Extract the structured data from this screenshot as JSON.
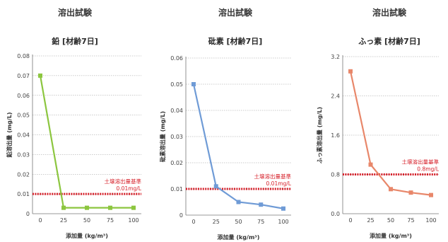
{
  "chart_data": [
    {
      "type": "line",
      "title": "溶出試験",
      "subtitle": "鉛 [材齢7日]",
      "xlabel": "添加量 (kg/m³)",
      "ylabel": "鉛溶出量 (mg/L)",
      "x": [
        0,
        25,
        50,
        75,
        100
      ],
      "xticks": [
        "0",
        "25",
        "50",
        "75",
        "100"
      ],
      "ylim": [
        0,
        0.08
      ],
      "yticks": [
        "0",
        "0.01",
        "0.02",
        "0.03",
        "0.04",
        "0.05",
        "0.06",
        "0.07",
        "0.08"
      ],
      "series": [
        {
          "values": [
            0.07,
            0.003,
            0.003,
            0.003,
            0.003
          ],
          "color": "#8cc63f"
        }
      ],
      "reference": {
        "value": 0.01,
        "label_line1": "土壌溶出量基準",
        "label_line2": "0.01mg/L",
        "color": "#d6202a"
      },
      "grid": "horizontal-dashed"
    },
    {
      "type": "line",
      "title": "溶出試験",
      "subtitle": "砒素 [材齢7日]",
      "xlabel": "添加量 (kg/m³)",
      "ylabel": "砒素溶出量 (mg/L)",
      "x": [
        0,
        25,
        50,
        75,
        100
      ],
      "xticks": [
        "0",
        "25",
        "50",
        "75",
        "100"
      ],
      "ylim": [
        0,
        0.06
      ],
      "yticks": [
        "0",
        "0.01",
        "0.02",
        "0.03",
        "0.04",
        "0.05",
        "0.06"
      ],
      "series": [
        {
          "values": [
            0.05,
            0.011,
            0.005,
            0.004,
            0.0025
          ],
          "color": "#6f9bd6"
        }
      ],
      "reference": {
        "value": 0.01,
        "label_line1": "土壌溶出量基準",
        "label_line2": "0.01mg/L",
        "color": "#d6202a"
      },
      "grid": "horizontal-dashed"
    },
    {
      "type": "line",
      "title": "溶出試験",
      "subtitle": "ふっ素 [材齢7日]",
      "xlabel": "添加量 (kg/m³)",
      "ylabel": "ふっ素溶出量 (mg/L)",
      "x": [
        0,
        25,
        50,
        75,
        100
      ],
      "xticks": [
        "0",
        "25",
        "50",
        "75",
        "100"
      ],
      "ylim": [
        0,
        3.2
      ],
      "yticks": [
        "0.0",
        "0.8",
        "1.6",
        "2.4",
        "3.2"
      ],
      "series": [
        {
          "values": [
            2.9,
            1.0,
            0.5,
            0.43,
            0.38
          ],
          "color": "#e8876a"
        }
      ],
      "reference": {
        "value": 0.8,
        "label_line1": "土壌溶出量基準",
        "label_line2": "0.8mg/L",
        "color": "#d6202a"
      },
      "grid": "horizontal-dashed"
    }
  ]
}
